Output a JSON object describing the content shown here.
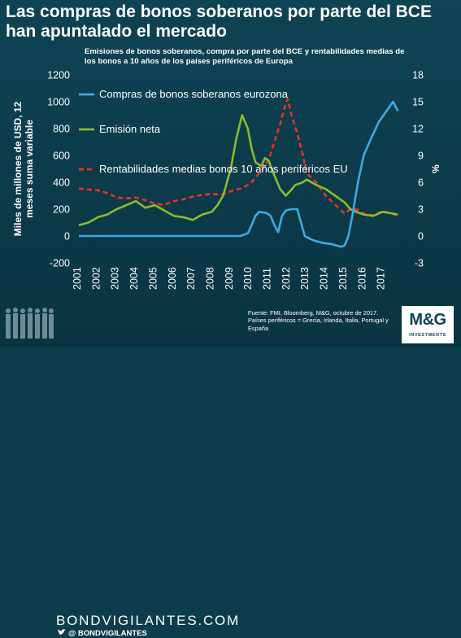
{
  "header": {
    "title": "Las compras de bonos soberanos por parte del BCE han apuntalado el mercado"
  },
  "footer": {
    "brand": "BONDVIGILANTES.COM",
    "twitter_handle": "@ BONDVIGILANTES",
    "source_line1": "Fuente: FMI, Bloomberg, M&G, octubre de 2017.",
    "source_line2": "Países periféricos = Grecia, Irlanda, Italia, Portugal y España",
    "logo_main": "M&G",
    "logo_sub": "INVESTMENTS",
    "icons": [
      "people-silhouettes-icon",
      "twitter-icon"
    ]
  },
  "chart_data": {
    "type": "line",
    "subtitle": "Emisiones de bonos soberanos, compra por parte del BCE y rentabilidades medias de los bonos a 10 años de los países periféricos de Europa",
    "ylabel": "Miles de millones de USD, 12 meses suma variable",
    "y2label": "%",
    "ylim": [
      -200,
      1200
    ],
    "y2lim": [
      -3,
      18
    ],
    "xlim": [
      2001,
      2018
    ],
    "x_ticks": [
      "2001",
      "2002",
      "2003",
      "2004",
      "2005",
      "2006",
      "2007",
      "2008",
      "2009",
      "2010",
      "2011",
      "2012",
      "2013",
      "2014",
      "2015",
      "2016",
      "2017"
    ],
    "y_ticks": [
      "-200",
      "0",
      "200",
      "400",
      "600",
      "800",
      "1000",
      "1200"
    ],
    "y2_ticks": [
      "-3",
      "0",
      "3",
      "6",
      "9",
      "12",
      "15",
      "18"
    ],
    "legend_position": "inside-top-left",
    "background": "#0e4354",
    "series": [
      {
        "name": "Compras de bonos soberanos eurozona",
        "axis": "left",
        "color": "#3fa9e0",
        "style": "solid",
        "x": [
          2001,
          2009.5,
          2009.9,
          2010.1,
          2010.3,
          2010.5,
          2010.9,
          2011.1,
          2011.3,
          2011.5,
          2011.7,
          2011.9,
          2012.2,
          2012.5,
          2012.9,
          2013.3,
          2013.8,
          2014.3,
          2014.8,
          2015.0,
          2015.2,
          2015.4,
          2015.7,
          2016.0,
          2016.4,
          2016.8,
          2017.2,
          2017.55,
          2017.8
        ],
        "y": [
          0,
          0,
          20,
          80,
          150,
          180,
          170,
          150,
          80,
          30,
          150,
          190,
          200,
          200,
          0,
          -30,
          -50,
          -60,
          -80,
          -70,
          0,
          150,
          400,
          600,
          730,
          850,
          930,
          1000,
          930
        ]
      },
      {
        "name": "Emisión neta",
        "axis": "left",
        "color": "#8db92e",
        "style": "solid",
        "x": [
          2001,
          2001.5,
          2002,
          2002.5,
          2003,
          2003.5,
          2004,
          2004.5,
          2005,
          2005.5,
          2006,
          2006.5,
          2007,
          2007.5,
          2008,
          2008.3,
          2008.6,
          2009,
          2009.3,
          2009.6,
          2009.9,
          2010.1,
          2010.3,
          2010.6,
          2010.8,
          2011,
          2011.3,
          2011.6,
          2011.9,
          2012.1,
          2012.4,
          2012.8,
          2013,
          2013.5,
          2014,
          2014.5,
          2015,
          2015.3,
          2015.6,
          2016,
          2016.5,
          2017,
          2017.4,
          2017.8
        ],
        "y": [
          80,
          100,
          140,
          160,
          200,
          230,
          260,
          210,
          230,
          190,
          150,
          140,
          120,
          160,
          180,
          230,
          300,
          500,
          730,
          900,
          800,
          650,
          550,
          520,
          580,
          560,
          450,
          350,
          300,
          330,
          380,
          400,
          420,
          380,
          350,
          300,
          250,
          200,
          180,
          160,
          150,
          180,
          170,
          160
        ]
      },
      {
        "name": "Rentabilidades medias bonos 10 años periféricos EU",
        "axis": "right",
        "color": "#e23325",
        "style": "dashed",
        "x": [
          2001,
          2001.5,
          2002,
          2002.5,
          2003,
          2003.5,
          2004,
          2004.5,
          2005,
          2005.5,
          2006,
          2006.5,
          2007,
          2007.5,
          2008,
          2008.5,
          2009,
          2009.5,
          2010,
          2010.5,
          2011,
          2011.3,
          2011.6,
          2011.9,
          2012.0,
          2012.2,
          2012.5,
          2012.8,
          2013,
          2013.5,
          2014,
          2014.5,
          2015,
          2015.3,
          2015.6,
          2016,
          2016.5,
          2017,
          2017.5,
          2017.8
        ],
        "y": [
          5.3,
          5.2,
          5.1,
          4.8,
          4.3,
          4.2,
          4.3,
          4.0,
          3.6,
          3.5,
          3.9,
          4.1,
          4.4,
          4.6,
          4.7,
          4.6,
          5.0,
          5.3,
          5.8,
          7.0,
          8.5,
          10.5,
          12.5,
          14.8,
          15.3,
          13.5,
          11.5,
          9.0,
          7.0,
          6.0,
          4.5,
          3.5,
          2.5,
          3.0,
          3.0,
          2.5,
          2.3,
          2.8,
          2.5,
          2.2
        ]
      }
    ]
  }
}
